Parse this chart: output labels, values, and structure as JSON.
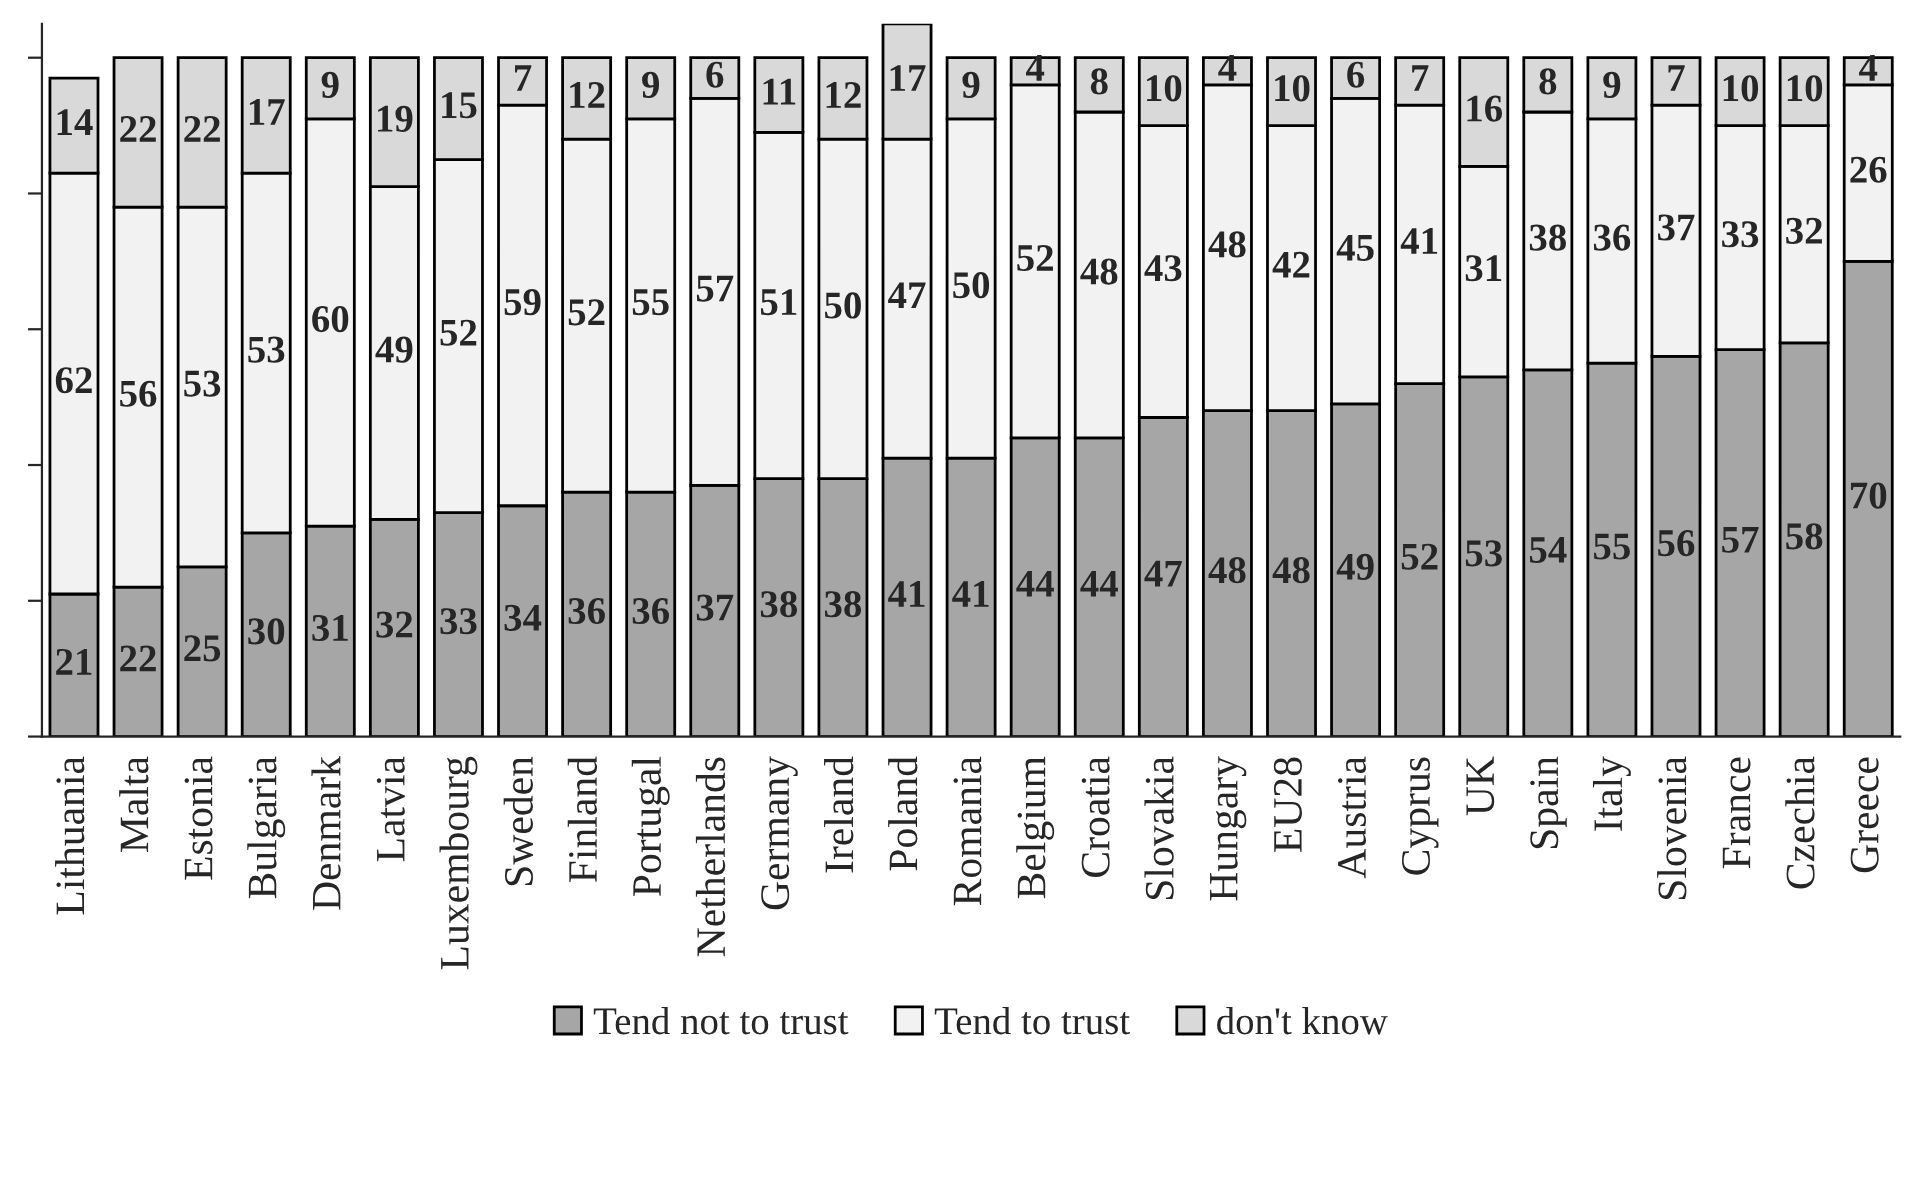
{
  "chart_data": {
    "type": "bar",
    "stacked": true,
    "data_labels": true,
    "legend": "bottom",
    "grid": false,
    "categories": [
      "Lithuania",
      "Malta",
      "Estonia",
      "Bulgaria",
      "Denmark",
      "Latvia",
      "Luxembourg",
      "Sweden",
      "Finland",
      "Portugal",
      "Netherlands",
      "Germany",
      "Ireland",
      "Poland",
      "Romania",
      "Belgium",
      "Croatia",
      "Slovakia",
      "Hungary",
      "EU28",
      "Austria",
      "Cyprus",
      "UK",
      "Spain",
      "Italy",
      "Slovenia",
      "France",
      "Czechia",
      "Greece"
    ],
    "series": [
      {
        "name": "Tend not to trust",
        "color": "#a6a6a6",
        "values": [
          21,
          22,
          25,
          30,
          31,
          32,
          33,
          34,
          36,
          36,
          37,
          38,
          38,
          41,
          41,
          44,
          44,
          47,
          48,
          48,
          49,
          52,
          53,
          54,
          55,
          56,
          57,
          58,
          70
        ]
      },
      {
        "name": "Tend to trust",
        "color": "#f2f2f2",
        "values": [
          62,
          56,
          53,
          53,
          60,
          49,
          52,
          59,
          52,
          55,
          57,
          51,
          50,
          47,
          50,
          52,
          48,
          43,
          48,
          42,
          45,
          41,
          31,
          38,
          36,
          37,
          33,
          32,
          26
        ]
      },
      {
        "name": "don't know",
        "color": "#d9d9d9",
        "values": [
          14,
          22,
          22,
          17,
          9,
          19,
          15,
          7,
          12,
          9,
          6,
          11,
          12,
          17,
          9,
          4,
          8,
          10,
          4,
          10,
          6,
          7,
          16,
          8,
          9,
          7,
          10,
          10,
          4
        ]
      }
    ]
  }
}
